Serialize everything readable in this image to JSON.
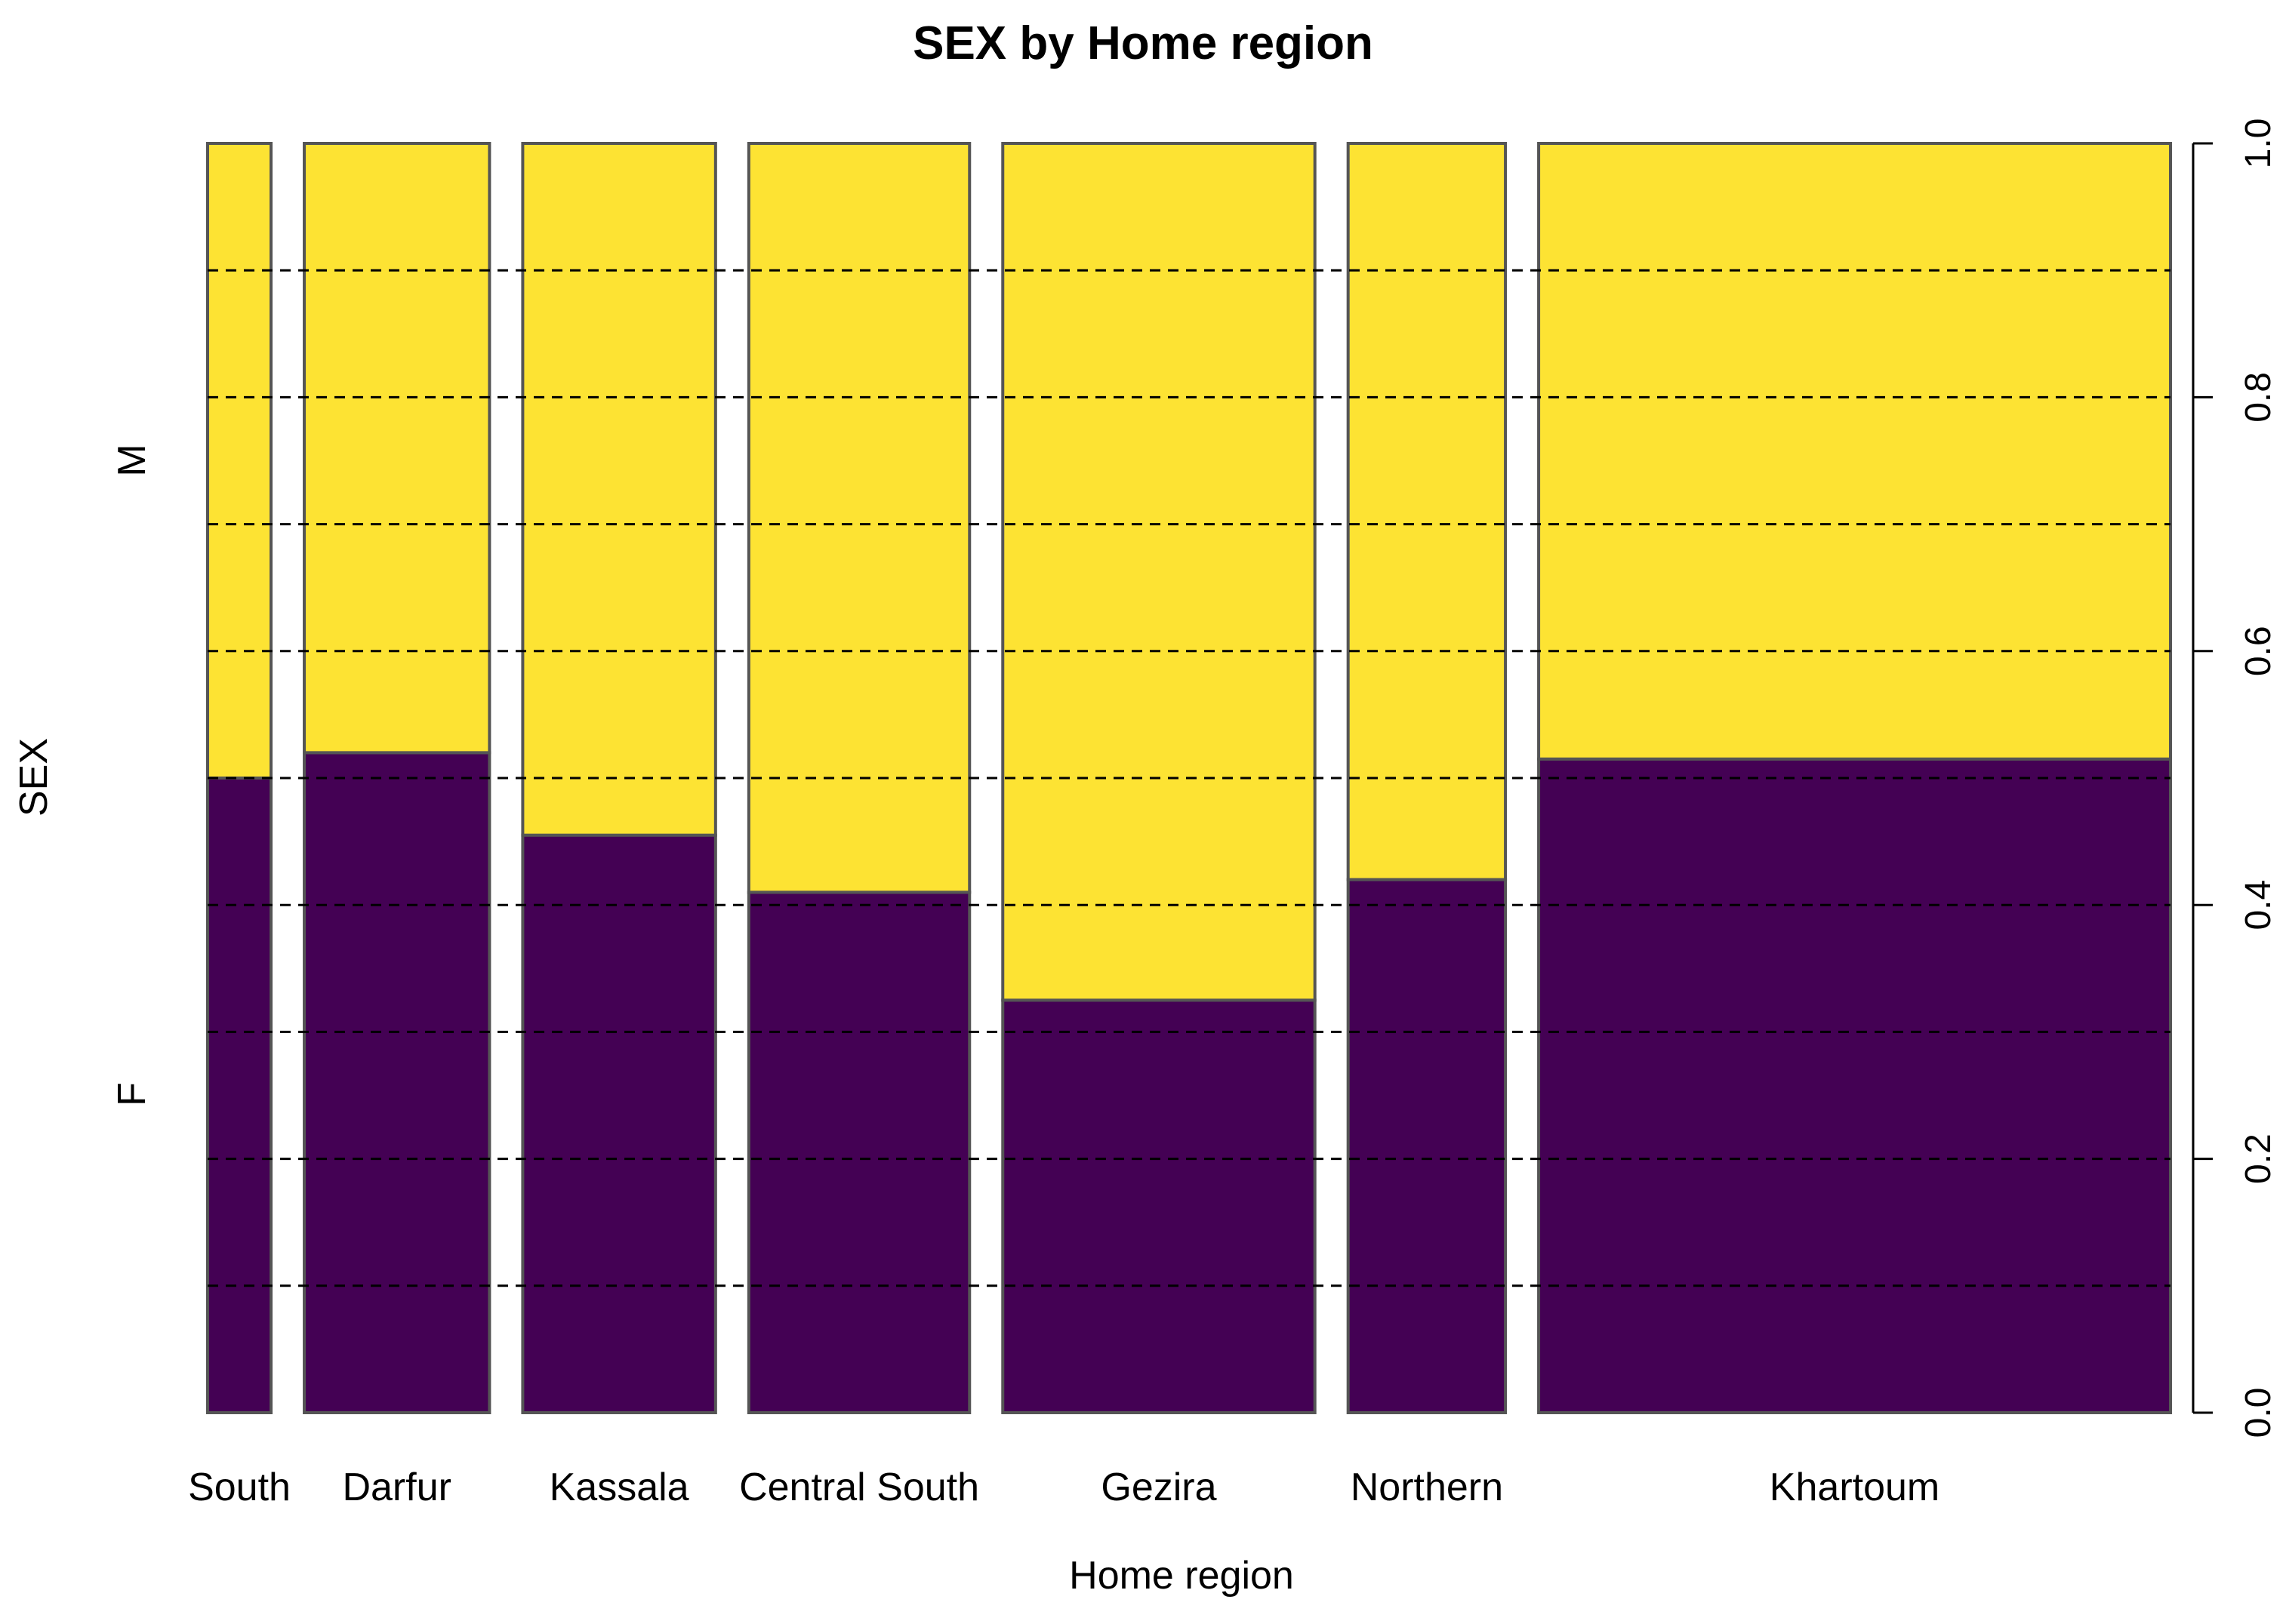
{
  "chart_data": {
    "type": "spineplot",
    "title": "SEX by Home region",
    "xlabel": "Home region",
    "ylabel": "SEX",
    "ylim": [
      0,
      1
    ],
    "y_ticks": [
      "0.0",
      "0.2",
      "0.4",
      "0.6",
      "0.8",
      "1.0"
    ],
    "grid_values": [
      0.1,
      0.2,
      0.3,
      0.4,
      0.5,
      0.6,
      0.7,
      0.8,
      0.9
    ],
    "categories": [
      "South",
      "Darfur",
      "Kassala",
      "Central South",
      "Gezira",
      "Northern",
      "Khartoum"
    ],
    "relative_widths": [
      0.025,
      0.073,
      0.076,
      0.087,
      0.123,
      0.062,
      0.249
    ],
    "series": [
      {
        "name": "F",
        "values": [
          0.5,
          0.52,
          0.455,
          0.41,
          0.325,
          0.42,
          0.515
        ]
      },
      {
        "name": "M",
        "values": [
          0.5,
          0.48,
          0.545,
          0.59,
          0.675,
          0.58,
          0.485
        ]
      }
    ],
    "left_labels": [
      "M",
      "F"
    ],
    "colors": {
      "F": "#440154",
      "M": "#FDE333",
      "border": "#555555",
      "grid": "#000000"
    }
  }
}
